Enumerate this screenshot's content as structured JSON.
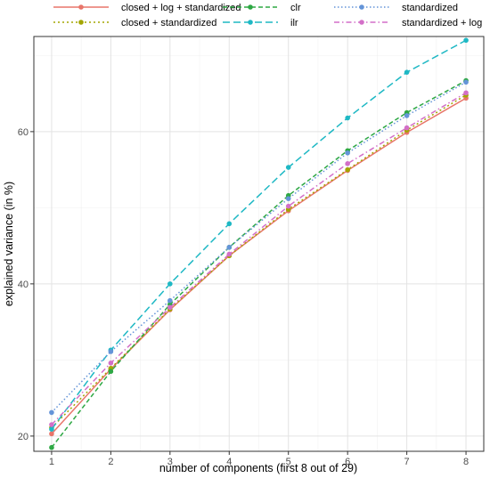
{
  "chart_data": {
    "type": "line",
    "title": "",
    "xlabel": "number of components (first 8 out of 29)",
    "ylabel": "explained variance (in %)",
    "x": [
      1,
      2,
      3,
      4,
      5,
      6,
      7,
      8
    ],
    "xlim": [
      0.7,
      8.3
    ],
    "ylim": [
      18,
      72.5
    ],
    "x_ticks": [
      1,
      2,
      3,
      4,
      5,
      6,
      7,
      8
    ],
    "y_ticks": [
      20,
      40,
      60
    ],
    "grid": true,
    "legend_position": "top",
    "series": [
      {
        "name": "closed + log + standardized",
        "color": "#E8756A",
        "dash": "solid",
        "values": [
          20.3,
          28.8,
          36.6,
          43.7,
          49.6,
          54.9,
          59.9,
          64.4
        ]
      },
      {
        "name": "closed + standardized",
        "color": "#A3A500",
        "dash": "dotted",
        "values": [
          21.1,
          28.9,
          36.7,
          43.7,
          49.8,
          55.0,
          60.2,
          64.8
        ]
      },
      {
        "name": "clr",
        "color": "#2EA844",
        "dash": "dashed",
        "values": [
          18.5,
          28.5,
          37.3,
          44.8,
          51.6,
          57.5,
          62.5,
          66.7
        ]
      },
      {
        "name": "ilr",
        "color": "#1EB8C4",
        "dash": "longdash",
        "values": [
          20.9,
          31.3,
          40.0,
          47.9,
          55.3,
          61.8,
          67.8,
          72.0
        ]
      },
      {
        "name": "standardized",
        "color": "#6494D8",
        "dash": "dotted2",
        "values": [
          23.1,
          31.1,
          37.8,
          44.8,
          51.2,
          57.2,
          62.1,
          66.5
        ]
      },
      {
        "name": "standardized + log",
        "color": "#D36FC8",
        "dash": "dotdash",
        "values": [
          21.5,
          29.6,
          36.9,
          43.9,
          50.2,
          55.8,
          60.5,
          65.1
        ]
      }
    ]
  }
}
